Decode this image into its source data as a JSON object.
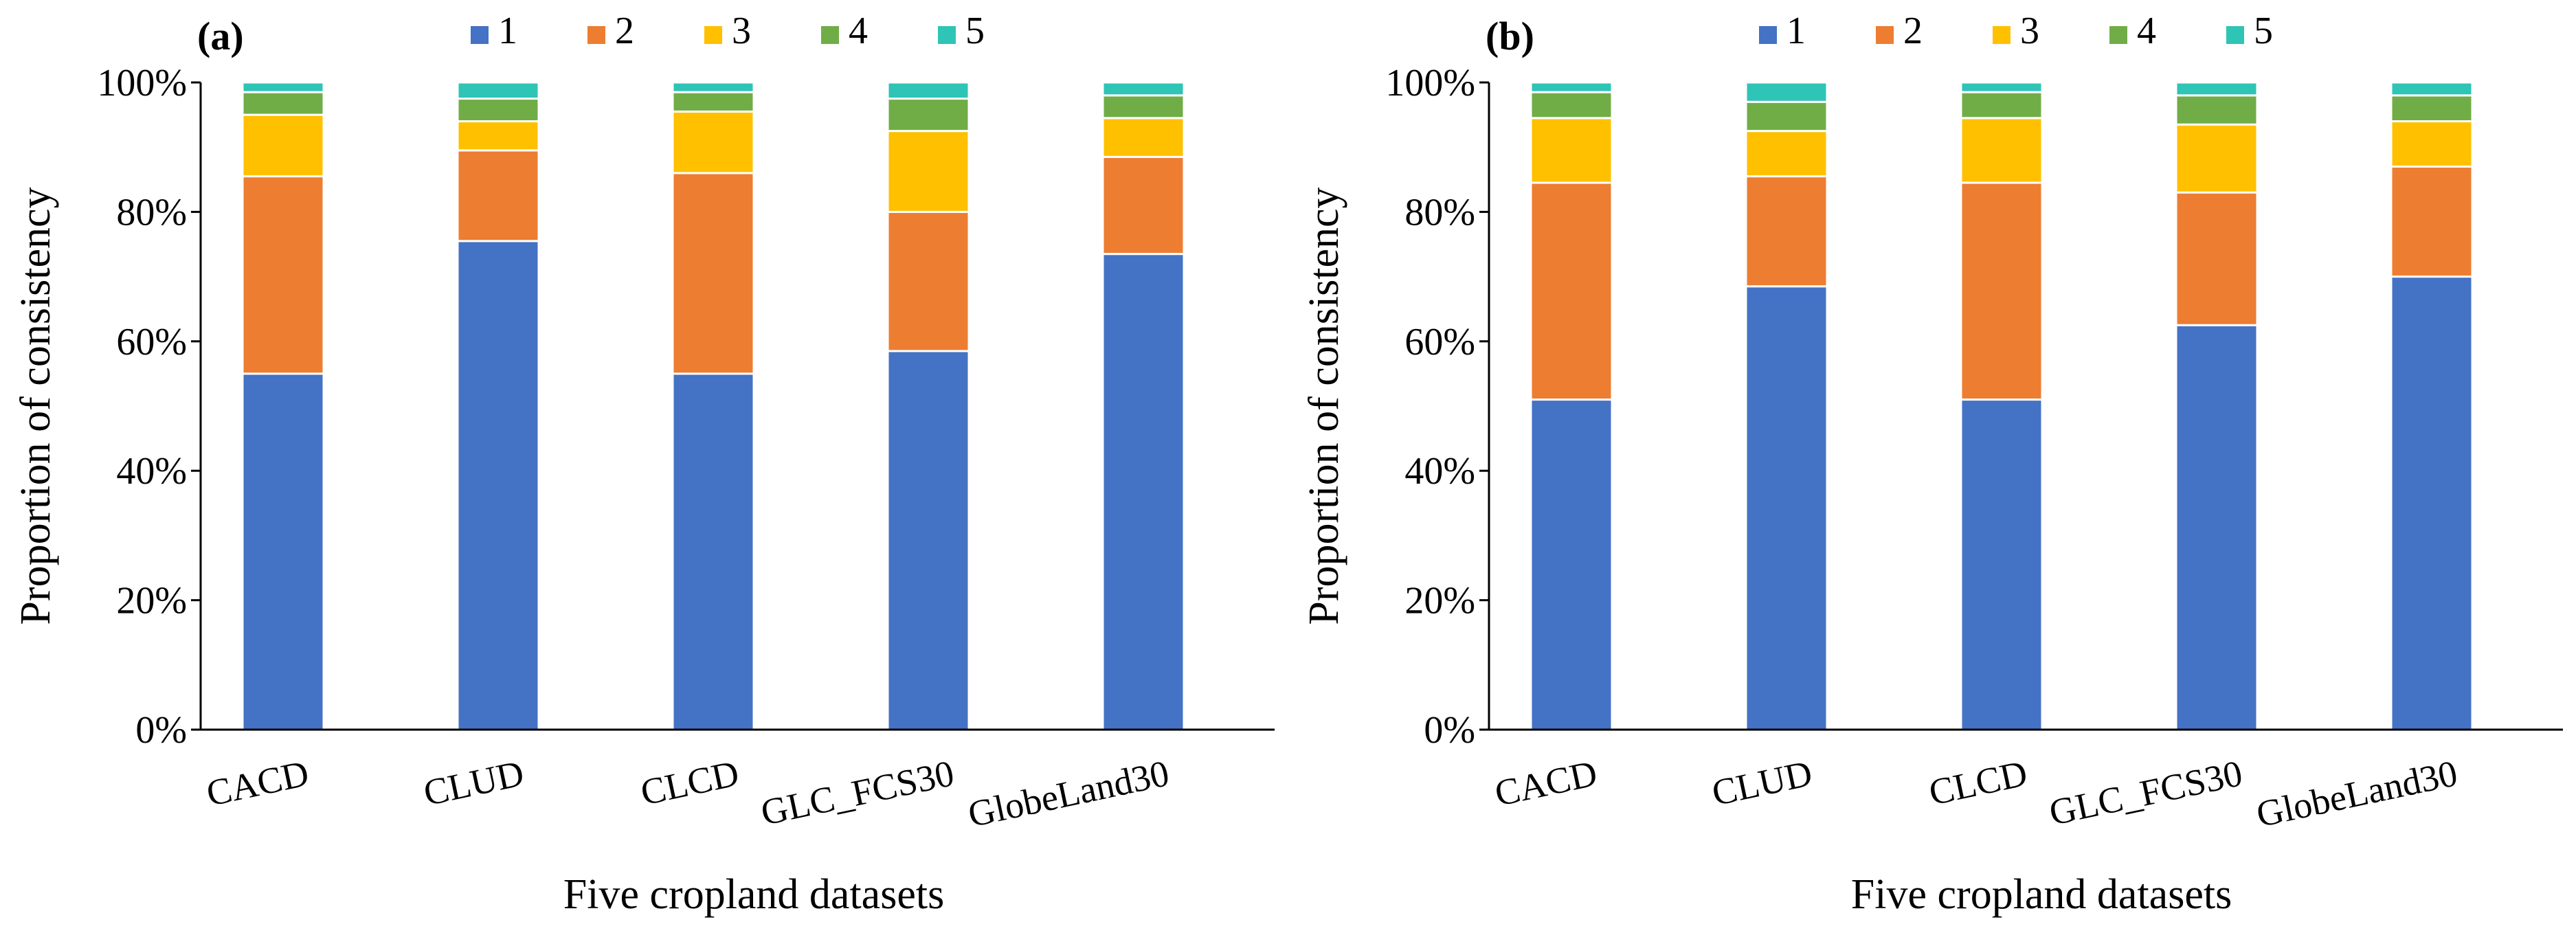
{
  "chart_data": [
    {
      "type": "bar",
      "stacked": true,
      "panel_label": "(a)",
      "categories": [
        "CACD",
        "CLUD",
        "CLCD",
        "GLC_FCS30",
        "GlobeLand30"
      ],
      "series": [
        {
          "name": "1",
          "color": "#4472C4",
          "values": [
            55,
            75.5,
            55,
            58.5,
            73.5
          ]
        },
        {
          "name": "2",
          "color": "#ED7D31",
          "values": [
            30.5,
            14,
            31,
            21.5,
            15
          ]
        },
        {
          "name": "3",
          "color": "#FFC000",
          "values": [
            9.5,
            4.5,
            9.5,
            12.5,
            6
          ]
        },
        {
          "name": "4",
          "color": "#70AD47",
          "values": [
            3.5,
            3.5,
            3,
            5,
            3.5
          ]
        },
        {
          "name": "5",
          "color": "#2EC4B6",
          "values": [
            1.5,
            2.5,
            1.5,
            2.5,
            2
          ]
        }
      ],
      "xlabel": "Five cropland datasets",
      "ylabel": "Proportion of consistency",
      "ylim": [
        0,
        100
      ],
      "yticks": [
        "0%",
        "20%",
        "40%",
        "60%",
        "80%",
        "100%"
      ],
      "grid": false,
      "legend_position": "top"
    },
    {
      "type": "bar",
      "stacked": true,
      "panel_label": "(b)",
      "categories": [
        "CACD",
        "CLUD",
        "CLCD",
        "GLC_FCS30",
        "GlobeLand30"
      ],
      "series": [
        {
          "name": "1",
          "color": "#4472C4",
          "values": [
            51,
            68.5,
            51,
            62.5,
            70
          ]
        },
        {
          "name": "2",
          "color": "#ED7D31",
          "values": [
            33.5,
            17,
            33.5,
            20.5,
            17
          ]
        },
        {
          "name": "3",
          "color": "#FFC000",
          "values": [
            10,
            7,
            10,
            10.5,
            7
          ]
        },
        {
          "name": "4",
          "color": "#70AD47",
          "values": [
            4,
            4.5,
            4,
            4.5,
            4
          ]
        },
        {
          "name": "5",
          "color": "#2EC4B6",
          "values": [
            1.5,
            3,
            1.5,
            2,
            2
          ]
        }
      ],
      "xlabel": "Five cropland datasets",
      "ylabel": "Proportion of consistency",
      "ylim": [
        0,
        100
      ],
      "yticks": [
        "0%",
        "20%",
        "40%",
        "60%",
        "80%",
        "100%"
      ],
      "grid": false,
      "legend_position": "top"
    }
  ]
}
